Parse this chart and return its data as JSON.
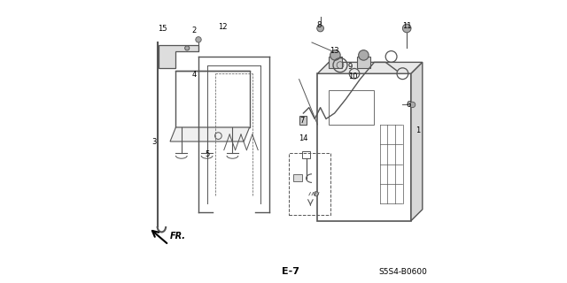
{
  "title": "",
  "background_color": "#ffffff",
  "line_color": "#555555",
  "text_color": "#000000",
  "diagram_code": "E-7",
  "part_number": "S5S4-B0600",
  "direction_label": "FR.",
  "fig_width": 6.4,
  "fig_height": 3.2,
  "dpi": 100
}
